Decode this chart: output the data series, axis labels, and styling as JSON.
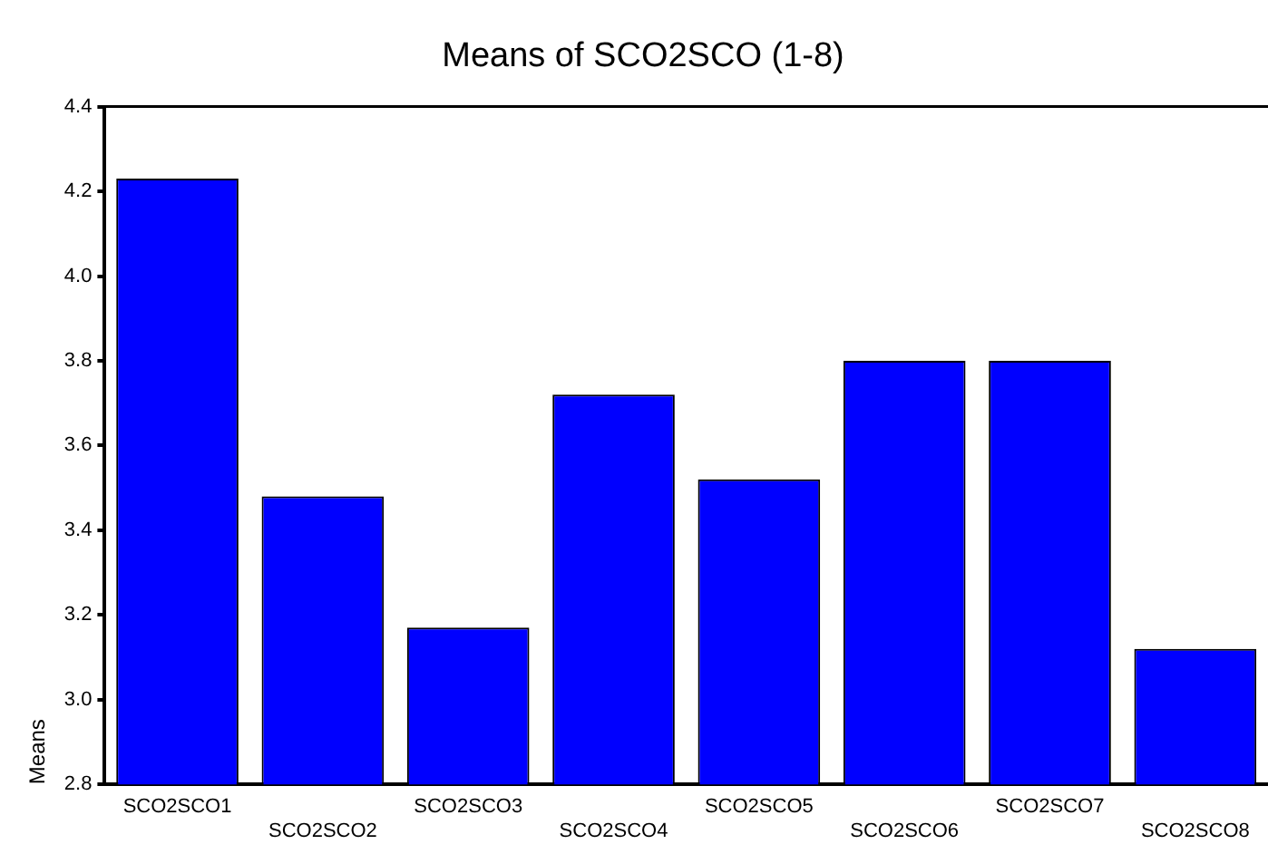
{
  "chart_data": {
    "type": "bar",
    "title": "Means of SCO2SCO (1-8)",
    "ylabel": "Means",
    "categories": [
      "SCO2SCO1",
      "SCO2SCO2",
      "SCO2SCO3",
      "SCO2SCO4",
      "SCO2SCO5",
      "SCO2SCO6",
      "SCO2SCO7",
      "SCO2SCO8"
    ],
    "values": [
      4.23,
      3.48,
      3.17,
      3.72,
      3.52,
      3.8,
      3.8,
      3.12
    ],
    "color": "#0000ff",
    "ylim": [
      2.8,
      4.4
    ],
    "yticks": [
      2.8,
      {
        "value": 3,
        "label": "3.0"
      },
      3.2,
      3.4,
      3.6,
      3.8,
      {
        "value": 4,
        "label": "4.0"
      },
      4.2,
      4.4
    ],
    "grid": false,
    "legend": false
  }
}
